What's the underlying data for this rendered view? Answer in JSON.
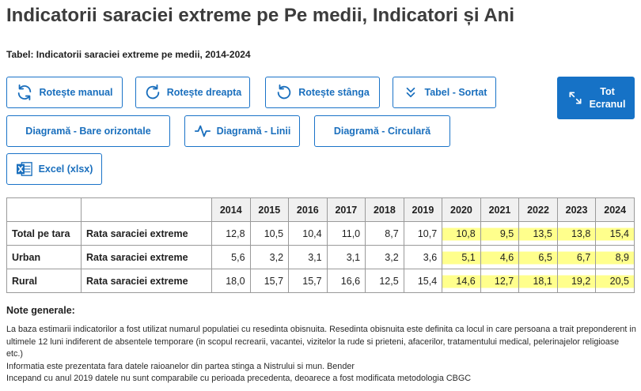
{
  "page": {
    "title": "Indicatorii saraciei extreme pe Pe medii, Indicatori și Ani",
    "subtitle": "Tabel: Indicatorii saraciei extreme pe medii, 2014-2024"
  },
  "toolbar": {
    "rotate_manual": "Rotește manual",
    "rotate_right": "Rotește dreapta",
    "rotate_left": "Rotește stânga",
    "table_sorted": "Tabel - Sortat",
    "fullscreen": "Tot\nEcranul",
    "chart_bars": "Diagramă - Bare orizontale",
    "chart_lines": "Diagramă - Linii",
    "chart_pie": "Diagramă - Circulară",
    "excel": "Excel (xlsx)"
  },
  "icons": {
    "rotate_manual": "rotate-arrows-icon",
    "rotate_right": "rotate-right-icon",
    "rotate_left": "rotate-left-icon",
    "table_sorted": "double-chevron-down-icon",
    "fullscreen": "expand-icon",
    "chart_lines": "line-chart-icon",
    "excel": "excel-icon"
  },
  "colors": {
    "accent": "#1672c6",
    "highlight": "#ffff8c"
  },
  "table": {
    "years": [
      "2014",
      "2015",
      "2016",
      "2017",
      "2018",
      "2019",
      "2020",
      "2021",
      "2022",
      "2023",
      "2024"
    ],
    "rows": [
      {
        "region": "Total pe tara",
        "indicator": "Rata saraciei extreme",
        "values": [
          "12,8",
          "10,5",
          "10,4",
          "11,0",
          "8,7",
          "10,7",
          "10,8",
          "9,5",
          "13,5",
          "13,8",
          "15,4"
        ]
      },
      {
        "region": "Urban",
        "indicator": "Rata saraciei extreme",
        "values": [
          "5,6",
          "3,2",
          "3,1",
          "3,1",
          "3,2",
          "3,6",
          "5,1",
          "4,6",
          "6,5",
          "6,7",
          "8,9"
        ]
      },
      {
        "region": "Rural",
        "indicator": "Rata saraciei extreme",
        "values": [
          "18,0",
          "15,7",
          "15,7",
          "16,6",
          "12,5",
          "15,4",
          "14,6",
          "12,7",
          "18,1",
          "19,2",
          "20,5"
        ]
      }
    ]
  },
  "notes": {
    "title": "Note generale:",
    "lines": [
      "La baza estimarii indicatorilor a fost utilizat numarul populatiei cu resedinta obisnuita. Resedinta obisnuita este definita ca locul in care persoana a trait preponderent in ultimele 12 luni indiferent de absentele temporare (in scopul recrearii, vacantei, vizitelor la rude si prieteni, afacerilor, tratamentului medical, pelerinajelor religioase etc.)",
      "Informatia este prezentata fara datele raioanelor din partea stinga a Nistrului si mun. Bender",
      "Incepand cu anul 2019 datele nu sunt comparabile cu perioada precedenta, deoarece a fost modificata metodologia CBGC"
    ]
  }
}
